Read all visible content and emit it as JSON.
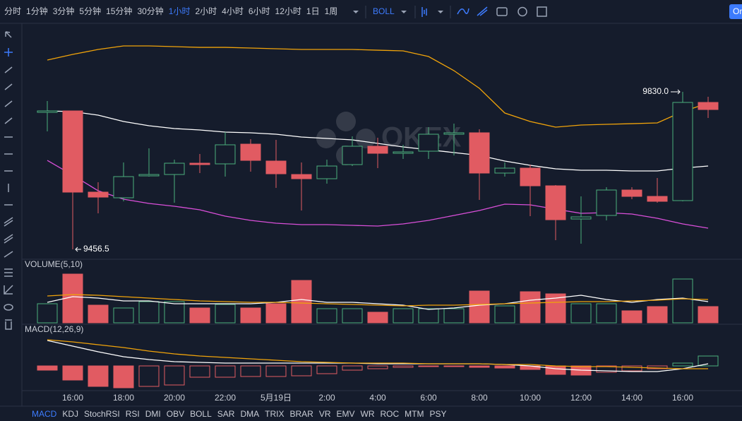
{
  "toolbar": {
    "intervals": [
      {
        "label": "分时"
      },
      {
        "label": "1分钟"
      },
      {
        "label": "3分钟"
      },
      {
        "label": "5分钟"
      },
      {
        "label": "15分钟"
      },
      {
        "label": "30分钟"
      },
      {
        "label": "1小时",
        "active": true
      },
      {
        "label": "2小时"
      },
      {
        "label": "4小时"
      },
      {
        "label": "6小时"
      },
      {
        "label": "12小时"
      },
      {
        "label": "1日"
      },
      {
        "label": "1周"
      }
    ],
    "indicator": "BOLL",
    "corner_button": "Or"
  },
  "watermark": "OKEX",
  "chart_data": {
    "type": "candlestick",
    "categories": [
      null,
      "16:00",
      null,
      "18:00",
      null,
      "20:00",
      null,
      "22:00",
      null,
      "5月19日",
      null,
      "2:00",
      null,
      "4:00",
      null,
      "6:00",
      null,
      "8:00",
      null,
      "10:00",
      null,
      "12:00",
      null,
      "14:00",
      null,
      "16:00",
      null
    ],
    "open": [
      9781.4,
      9784.8,
      9592.2,
      9578.8,
      9630.7,
      9634,
      9660.8,
      9659.2,
      9706,
      9665.9,
      9634,
      9624,
      9657.5,
      9701,
      9684.3,
      9689.3,
      9729.5,
      9732.9,
      9637.4,
      9649.1,
      9607.2,
      9528.5,
      9536.9,
      9597.2,
      9582.1,
      9572.1,
      9804.9
    ],
    "high": [
      9808.2,
      9784.8,
      9615.6,
      9662.5,
      9696,
      9669.2,
      9682.6,
      9734.5,
      9717.8,
      9716.1,
      9662.5,
      9669.2,
      9724.5,
      9721.1,
      9704.4,
      9746.3,
      9754.6,
      9741.2,
      9662.5,
      9657.5,
      9608.9,
      9582.1,
      9603.9,
      9603.9,
      9625.7,
      9830,
      9818.3
    ],
    "low": [
      9736.2,
      9456.5,
      9541.9,
      9570.4,
      9629,
      9567,
      9637.4,
      9629,
      9640.7,
      9602.2,
      9548.6,
      9612.3,
      9654.1,
      9649.1,
      9670.9,
      9670.9,
      9679.3,
      9573.7,
      9629,
      9535.2,
      9478.3,
      9469.9,
      9525.2,
      9575.4,
      9567,
      9570.4,
      9768
    ],
    "close": [
      9784.8,
      9592.2,
      9580.4,
      9629,
      9634,
      9660.8,
      9657.5,
      9704.4,
      9667.5,
      9635.7,
      9624,
      9654.1,
      9701,
      9684.3,
      9687.6,
      9729.5,
      9732.9,
      9637.4,
      9649.1,
      9607.2,
      9526.8,
      9533.5,
      9597.2,
      9582.1,
      9570.4,
      9804.9,
      9788.1
    ],
    "up_color": "#4caf7d",
    "down_color": "#e15b62",
    "ylim": [
      9436.4,
      9980.8
    ],
    "overlays": [
      {
        "color": "#f0a30a",
        "values": [
          9905.4,
          9918.8,
          9930.5,
          9938.9,
          9938.9,
          9937.2,
          9935.5,
          9935.5,
          9933.9,
          9932.2,
          9930.5,
          9930.5,
          9930.5,
          9928.8,
          9927.2,
          9913.8,
          9880.3,
          9838.4,
          9779.8,
          9759.7,
          9746.3,
          9751.3,
          9753,
          9754.6,
          9756.3,
          9783.1,
          9803.2
        ]
      },
      {
        "color": "#ffffff",
        "values": [
          9784.8,
          9783.1,
          9774.7,
          9759.7,
          9749.6,
          9742.9,
          9739.6,
          9734.5,
          9732.9,
          9729.5,
          9722.8,
          9719.5,
          9716.1,
          9707.7,
          9699.4,
          9692.7,
          9686,
          9679.3,
          9665.9,
          9655.8,
          9647.4,
          9644.1,
          9644.1,
          9642.4,
          9642.4,
          9649.1,
          9654.1
        ]
      },
      {
        "color": "#d94fd9",
        "values": [
          9667.5,
          9632.4,
          9595.5,
          9575.4,
          9565.4,
          9558.7,
          9550.3,
          9535.2,
          9525.2,
          9518.5,
          9515.1,
          9515.1,
          9513.4,
          9511.8,
          9516.8,
          9525.2,
          9536.9,
          9548.6,
          9563.7,
          9562,
          9551.9,
          9541.9,
          9543.6,
          9540.2,
          9530.2,
          9516.8,
          9506.7
        ]
      }
    ],
    "annotations": [
      {
        "label": "9830.0",
        "value": 9830
      },
      {
        "label": "9456.5",
        "value": 9456.5
      }
    ],
    "volume": {
      "title": "VOLUME(5,10)",
      "ylim": [
        0,
        72
      ],
      "values": [
        27,
        69,
        25,
        21,
        30,
        30,
        21,
        26,
        21,
        27,
        60,
        20,
        20,
        15,
        20,
        20,
        20,
        45,
        24,
        44,
        41,
        27,
        27,
        17,
        23,
        62,
        23
      ],
      "lines": [
        {
          "color": "#ffffff",
          "values": [
            29,
            37,
            35,
            31,
            31,
            27,
            27,
            27,
            27,
            29,
            33,
            29,
            29,
            27,
            25,
            19,
            21,
            25,
            27,
            32,
            35,
            39,
            33,
            29,
            33,
            35,
            30
          ]
        },
        {
          "color": "#f0a30a",
          "values": [
            38,
            40,
            39,
            37,
            35,
            33,
            31,
            30,
            29,
            29,
            28,
            27,
            26,
            25,
            24,
            25,
            25,
            26,
            27,
            28,
            29,
            30,
            30,
            31,
            32,
            34,
            33
          ]
        }
      ]
    },
    "macd": {
      "title": "MACD(12,26,9)",
      "ylim": [
        -34,
        48
      ],
      "values": [
        -6,
        -20,
        -29,
        -31,
        -29,
        -27,
        -16,
        -16,
        -15,
        -15,
        -14,
        -11,
        -6,
        -4,
        -2,
        -1,
        -1,
        -2,
        -3,
        -5,
        -12,
        -13,
        -9,
        -7,
        -4,
        4,
        14
      ],
      "lines": [
        {
          "color": "#ffffff",
          "values": [
            36,
            28,
            20,
            13,
            9,
            6,
            5,
            4,
            4,
            4,
            4,
            4,
            4,
            3,
            3,
            3,
            3,
            3,
            2,
            0,
            -4,
            -6,
            -7,
            -8,
            -8,
            -4,
            3
          ]
        },
        {
          "color": "#f0a30a",
          "values": [
            37,
            34,
            30,
            26,
            21,
            17,
            14,
            12,
            10,
            8,
            6,
            5,
            4,
            4,
            4,
            3,
            3,
            3,
            2,
            2,
            0,
            -1,
            -1,
            -2,
            -3,
            -4,
            -4
          ]
        }
      ]
    }
  },
  "indicator_tabs": [
    {
      "label": "MACD",
      "active": true
    },
    {
      "label": "KDJ"
    },
    {
      "label": "StochRSI"
    },
    {
      "label": "RSI"
    },
    {
      "label": "DMI"
    },
    {
      "label": "OBV"
    },
    {
      "label": "BOLL"
    },
    {
      "label": "SAR"
    },
    {
      "label": "DMA"
    },
    {
      "label": "TRIX"
    },
    {
      "label": "BRAR"
    },
    {
      "label": "VR"
    },
    {
      "label": "EMV"
    },
    {
      "label": "WR"
    },
    {
      "label": "ROC"
    },
    {
      "label": "MTM"
    },
    {
      "label": "PSY"
    }
  ]
}
